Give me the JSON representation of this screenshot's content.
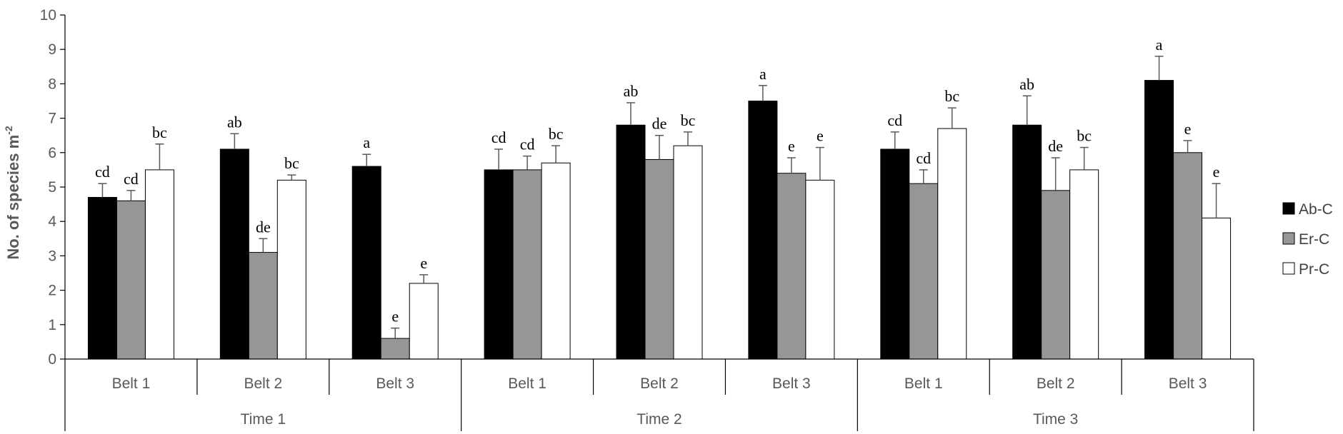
{
  "chart_data": {
    "type": "bar",
    "ylabel": "No. of species m",
    "ylabel_sup": "-2",
    "ylim": [
      0,
      10
    ],
    "yticks": [
      "0",
      "1",
      "2",
      "3",
      "4",
      "5",
      "6",
      "7",
      "8",
      "9",
      "10"
    ],
    "legend_position": "right",
    "groups": [
      {
        "label": "Time 1",
        "belts": [
          "Belt 1",
          "Belt 2",
          "Belt 3"
        ]
      },
      {
        "label": "Time 2",
        "belts": [
          "Belt 1",
          "Belt 2",
          "Belt 3"
        ]
      },
      {
        "label": "Time 3",
        "belts": [
          "Belt 1",
          "Belt 2",
          "Belt 3"
        ]
      }
    ],
    "series": [
      {
        "name": "Ab-C",
        "color": "#000000",
        "values": [
          4.7,
          6.1,
          5.6,
          5.5,
          6.8,
          7.5,
          6.1,
          6.8,
          8.1
        ],
        "errors": [
          0.4,
          0.45,
          0.35,
          0.6,
          0.65,
          0.45,
          0.5,
          0.85,
          0.7
        ],
        "letters": [
          "cd",
          "ab",
          "a",
          "cd",
          "ab",
          "a",
          "cd",
          "ab",
          "a"
        ]
      },
      {
        "name": "Er-C",
        "color": "#969696",
        "values": [
          4.6,
          3.1,
          0.6,
          5.5,
          5.8,
          5.4,
          5.1,
          4.9,
          6.0
        ],
        "errors": [
          0.3,
          0.4,
          0.3,
          0.4,
          0.7,
          0.45,
          0.4,
          0.95,
          0.35
        ],
        "letters": [
          "cd",
          "de",
          "e",
          "cd",
          "de",
          "e",
          "cd",
          "de",
          "e"
        ]
      },
      {
        "name": "Pr-C",
        "color": "#ffffff",
        "values": [
          5.5,
          5.2,
          2.2,
          5.7,
          6.2,
          5.2,
          6.7,
          5.5,
          4.1
        ],
        "errors": [
          0.75,
          0.15,
          0.25,
          0.5,
          0.4,
          0.95,
          0.6,
          0.65,
          1.0
        ],
        "letters": [
          "bc",
          "bc",
          "e",
          "bc",
          "bc",
          "e",
          "bc",
          "bc",
          "e"
        ]
      }
    ]
  }
}
